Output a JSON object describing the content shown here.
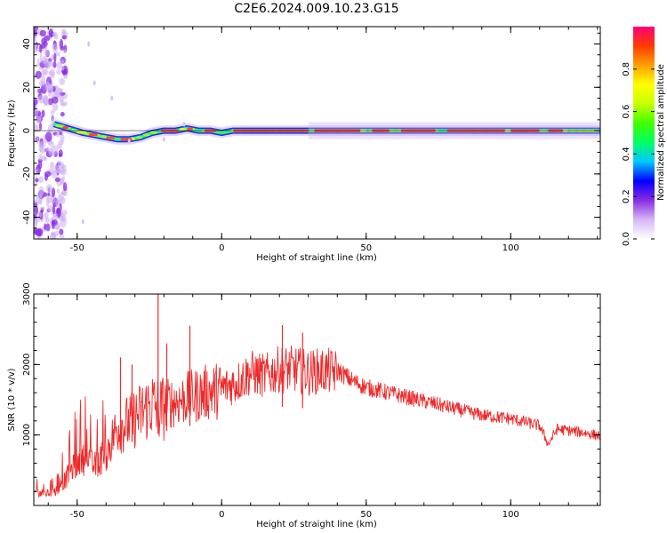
{
  "figure": {
    "title": "C2E6.2024.009.10.23.G15"
  },
  "chart_data": [
    {
      "type": "heatmap",
      "panel": "top",
      "xlabel": "Height of straight line (km)",
      "ylabel": "Frequency (Hz)",
      "xlim": [
        -65,
        131
      ],
      "ylim": [
        -50,
        48
      ],
      "xticks": [
        -50,
        0,
        50,
        100
      ],
      "xtick_labels": [
        "-50",
        "0",
        "50",
        "100"
      ],
      "yticks": [
        -40,
        -20,
        0,
        20,
        40
      ],
      "ytick_labels": [
        "-40",
        "-20",
        "0",
        "20",
        "40"
      ],
      "colorbar": {
        "label": "Normalized spectral amplitude",
        "range": [
          0,
          1
        ],
        "ticks": [
          0.0,
          0.2,
          0.4,
          0.6,
          0.8
        ],
        "tick_labels": [
          "0.0",
          "0.2",
          "0.4",
          "0.6",
          "0.8"
        ],
        "colors": [
          "#ffffff",
          "#d5b8f5",
          "#8a2be2",
          "#0000ff",
          "#00c8ff",
          "#00ff64",
          "#40ff00",
          "#c8ff00",
          "#ffff00",
          "#ffa000",
          "#ff3c00",
          "#ff0078"
        ]
      },
      "ridge": {
        "x": [
          -58,
          -53,
          -48,
          -44,
          -40,
          -36,
          -32,
          -28,
          -24,
          -20,
          -16,
          -12,
          -8,
          -4,
          0,
          4,
          10,
          20,
          30,
          40,
          50,
          60,
          70,
          80,
          90,
          100,
          110,
          120,
          131
        ],
        "y": [
          3,
          1,
          -1,
          -2,
          -3,
          -4,
          -4,
          -3,
          -1,
          0,
          0,
          1,
          0,
          0,
          -1,
          0,
          0,
          0,
          0,
          0,
          0,
          0,
          0,
          0,
          0,
          0,
          0,
          0,
          0
        ]
      }
    },
    {
      "type": "line",
      "panel": "bottom",
      "xlabel": "Height of straight line (km)",
      "ylabel": "SNR (10 * v/v)",
      "xlim": [
        -65,
        131
      ],
      "ylim": [
        0,
        3000
      ],
      "xticks": [
        -50,
        0,
        50,
        100
      ],
      "xtick_labels": [
        "-50",
        "0",
        "50",
        "100"
      ],
      "yticks": [
        1000,
        2000,
        3000
      ],
      "ytick_labels": [
        "1000",
        "2000",
        "3000"
      ],
      "line_color": "#ee2a2a",
      "x": [
        -65,
        -60,
        -56,
        -52,
        -48,
        -44,
        -40,
        -36,
        -32,
        -28,
        -24,
        -22,
        -20,
        -16,
        -12,
        -8,
        -4,
        0,
        5,
        10,
        15,
        20,
        25,
        30,
        35,
        40,
        45,
        50,
        60,
        70,
        80,
        90,
        100,
        110,
        113,
        116,
        120,
        125,
        131
      ],
      "y": [
        200,
        180,
        250,
        550,
        700,
        600,
        800,
        1200,
        1250,
        1400,
        1550,
        1450,
        1500,
        1550,
        1600,
        1650,
        1700,
        1720,
        1800,
        1950,
        1900,
        2000,
        2000,
        1950,
        1980,
        1950,
        1800,
        1700,
        1600,
        1500,
        1400,
        1300,
        1250,
        1150,
        880,
        1100,
        1080,
        1050,
        1000
      ],
      "spikes": [
        {
          "x": -22,
          "y": 3000
        },
        {
          "x": -35,
          "y": 2100
        },
        {
          "x": -31,
          "y": 2000
        },
        {
          "x": -11,
          "y": 2550
        },
        {
          "x": -19,
          "y": 2300
        },
        {
          "x": 21,
          "y": 2560
        },
        {
          "x": 28,
          "y": 2450
        }
      ]
    }
  ]
}
